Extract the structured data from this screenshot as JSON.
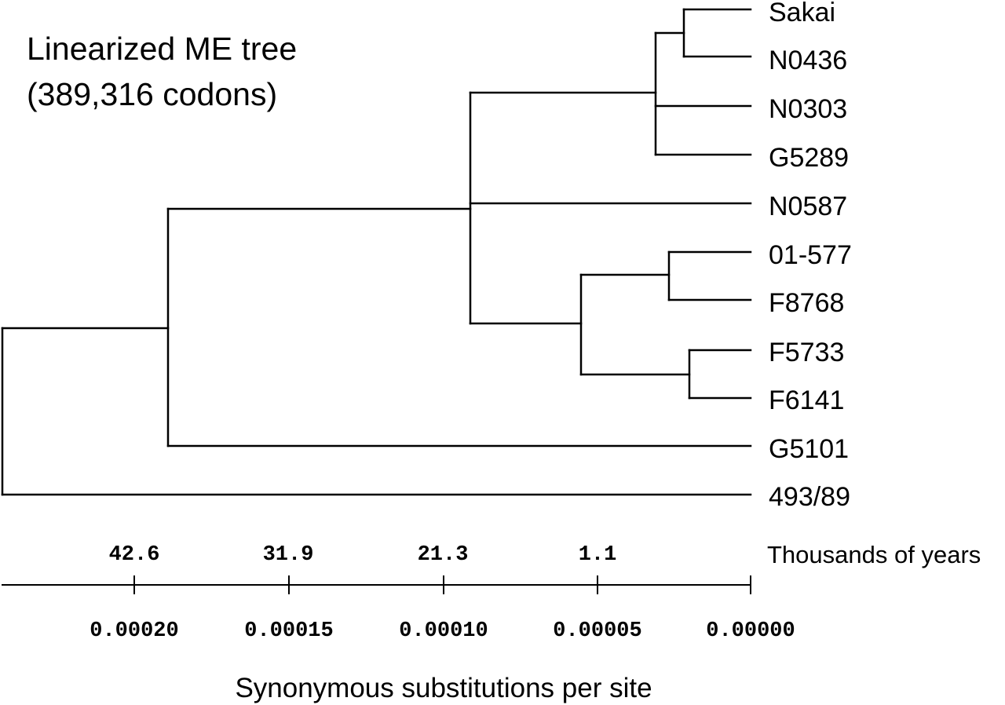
{
  "title": {
    "line1": "Linearized ME tree",
    "line2": "(389,316 codons)"
  },
  "tips": [
    {
      "id": "sakai",
      "label": "Sakai"
    },
    {
      "id": "n0436",
      "label": "N0436"
    },
    {
      "id": "n0303",
      "label": "N0303"
    },
    {
      "id": "g5289",
      "label": "G5289"
    },
    {
      "id": "n0587",
      "label": "N0587"
    },
    {
      "id": "01-577",
      "label": "01-577"
    },
    {
      "id": "f8768",
      "label": "F8768"
    },
    {
      "id": "f5733",
      "label": "F5733"
    },
    {
      "id": "f6141",
      "label": "F6141"
    },
    {
      "id": "g5101",
      "label": "G5101"
    },
    {
      "id": "493-89",
      "label": "493/89"
    }
  ],
  "years_axis": {
    "title": "Thousands of years",
    "ticks": [
      "42.6",
      "31.9",
      "21.3",
      "1.1"
    ]
  },
  "substitution_axis": {
    "title": "Synonymous substitutions per site",
    "ticks": [
      "0.00020",
      "0.00015",
      "0.00010",
      "0.00005",
      "0.00000"
    ]
  }
}
